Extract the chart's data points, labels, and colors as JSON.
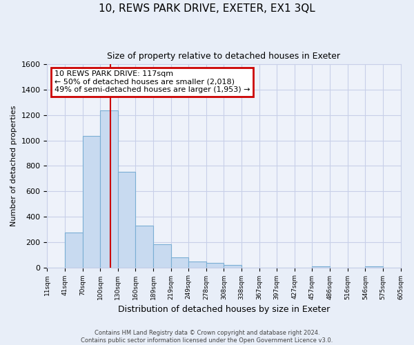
{
  "title": "10, REWS PARK DRIVE, EXETER, EX1 3QL",
  "subtitle": "Size of property relative to detached houses in Exeter",
  "xlabel": "Distribution of detached houses by size in Exeter",
  "ylabel": "Number of detached properties",
  "bar_values": [
    0,
    275,
    1035,
    1240,
    755,
    330,
    180,
    80,
    45,
    35,
    20,
    0,
    0,
    0,
    0,
    10,
    0,
    0,
    10,
    0
  ],
  "x_labels": [
    "11sqm",
    "41sqm",
    "70sqm",
    "100sqm",
    "130sqm",
    "160sqm",
    "189sqm",
    "219sqm",
    "249sqm",
    "278sqm",
    "308sqm",
    "338sqm",
    "367sqm",
    "397sqm",
    "427sqm",
    "457sqm",
    "486sqm",
    "516sqm",
    "546sqm",
    "575sqm",
    "605sqm"
  ],
  "bar_color": "#c8daf0",
  "bar_edge_color": "#7aaed4",
  "ylim": [
    0,
    1600
  ],
  "yticks": [
    0,
    200,
    400,
    600,
    800,
    1000,
    1200,
    1400,
    1600
  ],
  "property_label": "10 REWS PARK DRIVE: 117sqm",
  "annotation_line1": "← 50% of detached houses are smaller (2,018)",
  "annotation_line2": "49% of semi-detached houses are larger (1,953) →",
  "annotation_box_color": "#ffffff",
  "annotation_box_edge": "#cc0000",
  "vline_position": 3.567,
  "footer_line1": "Contains HM Land Registry data © Crown copyright and database right 2024.",
  "footer_line2": "Contains public sector information licensed under the Open Government Licence v3.0.",
  "background_color": "#e8eef8",
  "plot_bg_color": "#eef2fa",
  "grid_color": "#c8cfe8"
}
